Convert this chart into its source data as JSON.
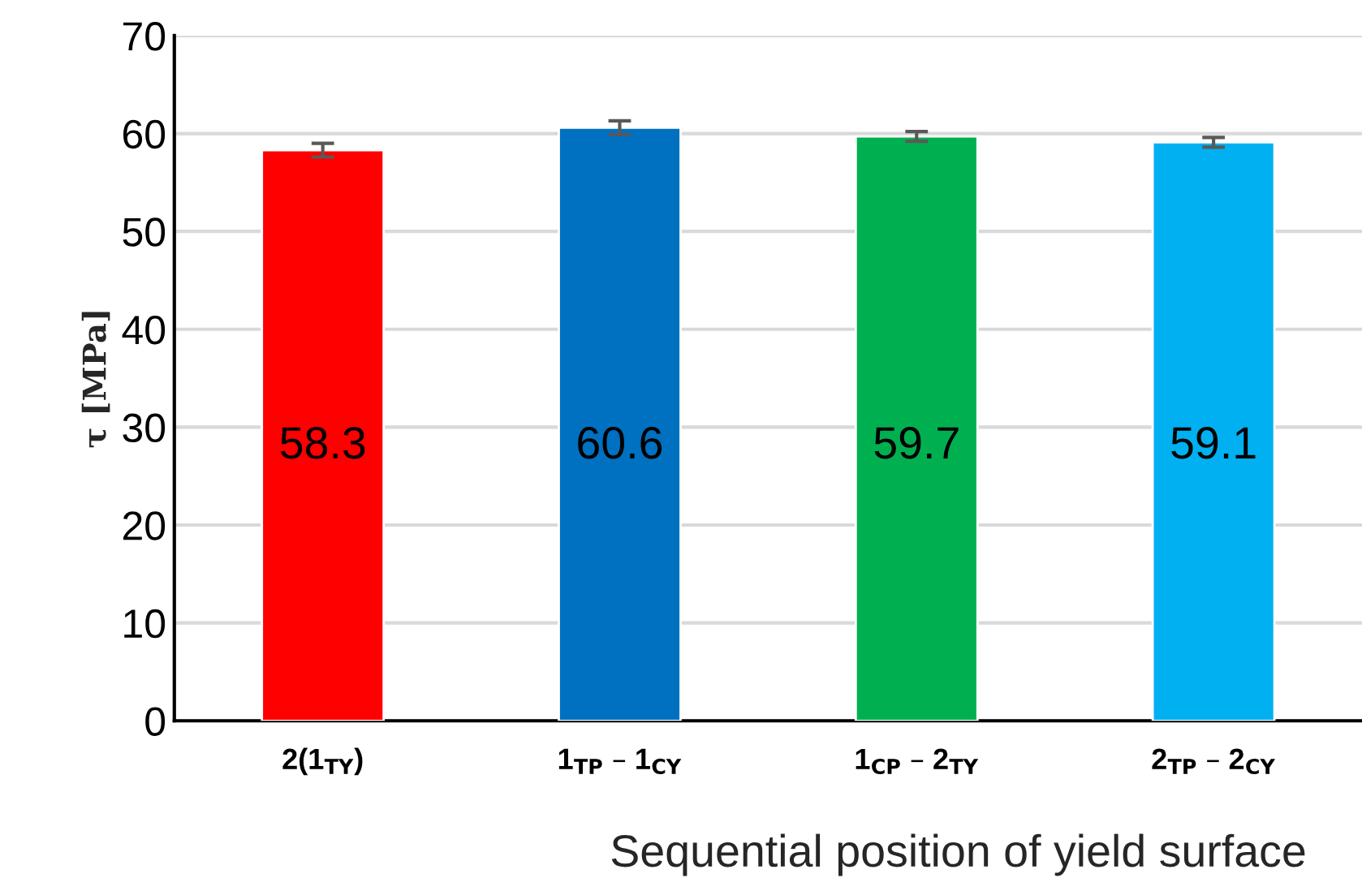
{
  "chart_data": {
    "type": "bar",
    "categories": [
      "2(1$_{TY}$)",
      "1$_{TP}$ – 1$_{CY}$",
      "1$_{CP}$ – 2$_{TY}$",
      "2$_{TP}$ – 2$_{CY}$"
    ],
    "values": [
      58.3,
      60.6,
      59.7,
      59.1
    ],
    "errors": [
      0.7,
      0.7,
      0.5,
      0.5
    ],
    "colors": [
      "#ff0000",
      "#0070c0",
      "#00b050",
      "#00b0f0"
    ],
    "xlabel": "Sequential position of yield surface",
    "ylabel": "τ [MPa]",
    "ylim": [
      0,
      70
    ],
    "yticks": [
      0,
      10,
      20,
      30,
      40,
      50,
      60,
      70
    ],
    "grid": "y",
    "data_labels": true
  }
}
